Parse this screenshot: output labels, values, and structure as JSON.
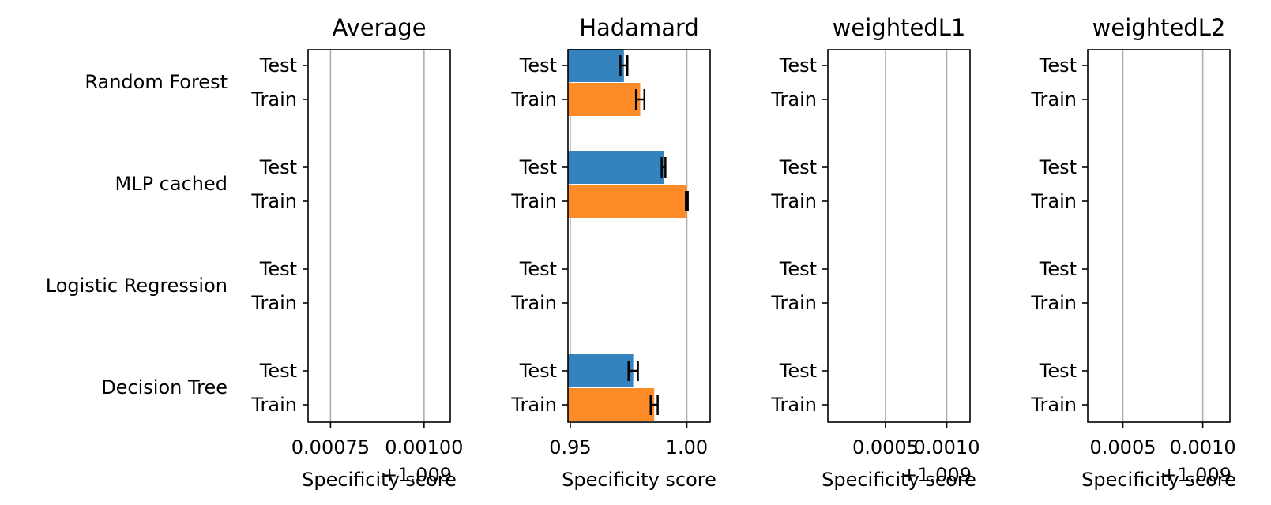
{
  "chart_data": {
    "type": "bar",
    "orientation": "horizontal",
    "row_labels": [
      "Random Forest",
      "MLP cached",
      "Logistic Regression",
      "Decision Tree"
    ],
    "bar_labels": [
      "Test",
      "Train"
    ],
    "colors": {
      "Test": "#3483bf",
      "Train": "#fd8b27"
    },
    "grid": "x",
    "panels": [
      {
        "title": "Average",
        "xlabel": "Specificity score",
        "offset_label": "+1.009",
        "xlim": [
          0.00069,
          0.00107
        ],
        "xticks": [
          0.00075,
          0.001
        ],
        "xtick_labels": [
          "0.00075",
          "0.00100"
        ],
        "values": null
      },
      {
        "title": "Hadamard",
        "xlabel": "Specificity score",
        "offset_label": "",
        "xlim": [
          0.949,
          1.01
        ],
        "xticks": [
          0.95,
          1.0
        ],
        "xtick_labels": [
          "0.95",
          "1.00"
        ],
        "values": {
          "Random Forest": {
            "Test": {
              "value": 0.973,
              "err": 0.0015
            },
            "Train": {
              "value": 0.98,
              "err": 0.0018
            }
          },
          "MLP cached": {
            "Test": {
              "value": 0.99,
              "err": 0.0008
            },
            "Train": {
              "value": 1.0,
              "err": 0.0004
            }
          },
          "Logistic Regression": null,
          "Decision Tree": {
            "Test": {
              "value": 0.977,
              "err": 0.002
            },
            "Train": {
              "value": 0.986,
              "err": 0.0015
            }
          }
        }
      },
      {
        "title": "weightedL1",
        "xlabel": "Specificity score",
        "offset_label": "+1.009",
        "xlim": [
          3e-05,
          0.00119
        ],
        "xticks": [
          0.0005,
          0.001
        ],
        "xtick_labels": [
          "0.0005",
          "0.0010"
        ],
        "values": null
      },
      {
        "title": "weightedL2",
        "xlabel": "Specificity score",
        "offset_label": "+1.009",
        "xlim": [
          0.00028,
          0.00117
        ],
        "xticks": [
          0.0005,
          0.001
        ],
        "xtick_labels": [
          "0.0005",
          "0.0010"
        ],
        "values": null
      }
    ]
  }
}
